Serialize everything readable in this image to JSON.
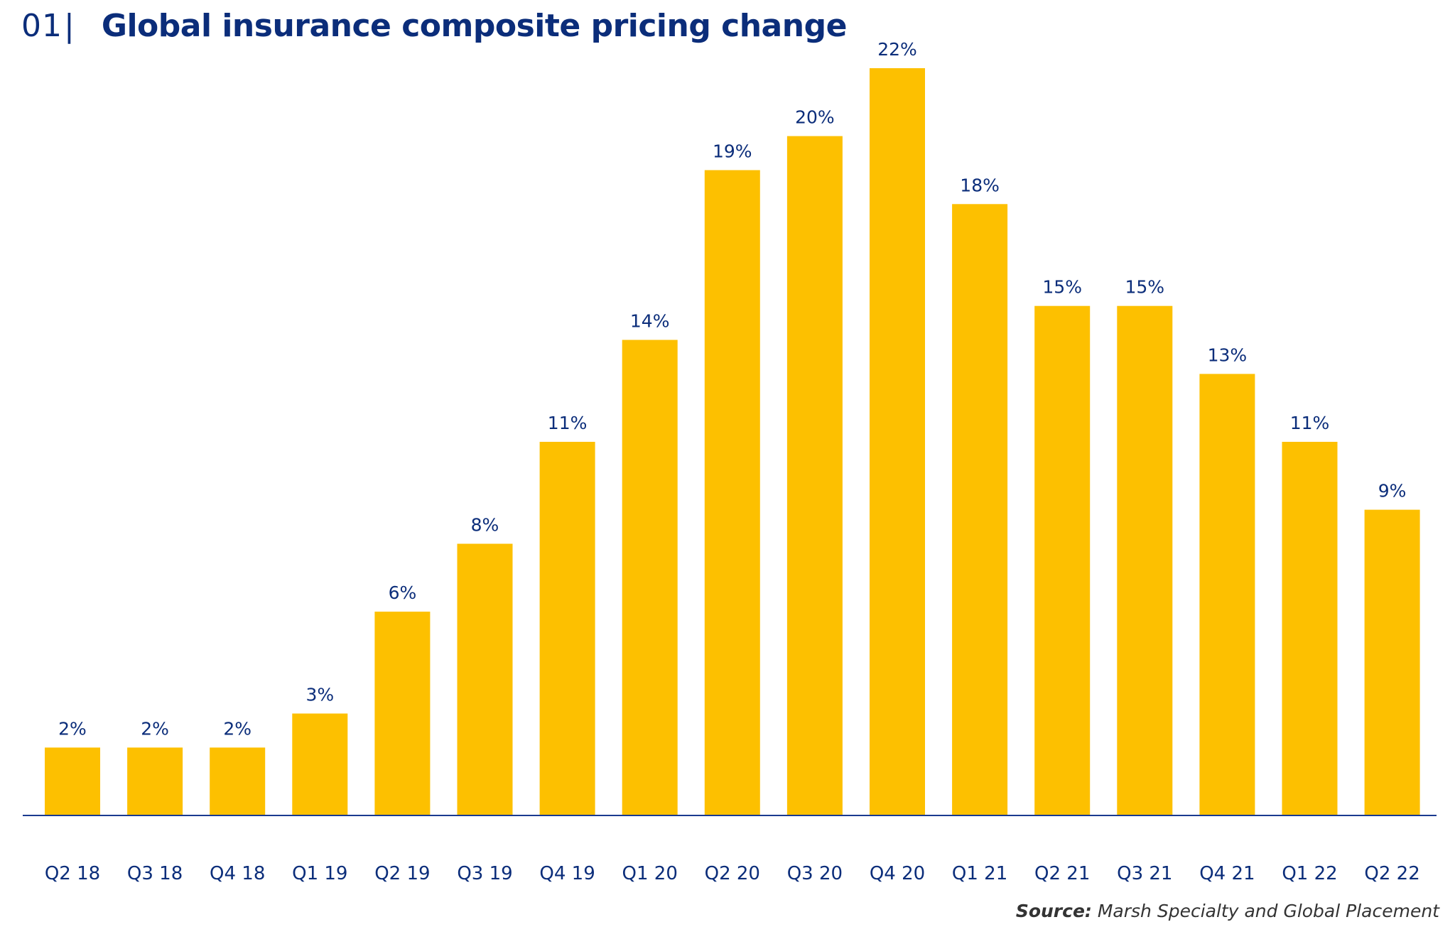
{
  "header": {
    "figure_number": "01",
    "separator": "|",
    "title": "Global insurance composite pricing change"
  },
  "source": {
    "label": "Source:",
    "text": "Marsh Specialty and Global Placement"
  },
  "colors": {
    "bar": "#fdc000",
    "axis": "#1a3a8f",
    "text": "#0b2d7a"
  },
  "chart_data": {
    "type": "bar",
    "title": "Global insurance composite pricing change",
    "xlabel": "",
    "ylabel": "",
    "categories": [
      "Q2 18",
      "Q3 18",
      "Q4 18",
      "Q1 19",
      "Q2 19",
      "Q3 19",
      "Q4 19",
      "Q1 20",
      "Q2 20",
      "Q3 20",
      "Q4 20",
      "Q1 21",
      "Q2 21",
      "Q3 21",
      "Q4 21",
      "Q1 22",
      "Q2 22"
    ],
    "values": [
      2,
      2,
      2,
      3,
      6,
      8,
      11,
      14,
      19,
      20,
      22,
      18,
      15,
      15,
      13,
      11,
      9
    ],
    "data_labels": [
      "2%",
      "2%",
      "2%",
      "3%",
      "6%",
      "8%",
      "11%",
      "14%",
      "19%",
      "20%",
      "22%",
      "18%",
      "15%",
      "15%",
      "13%",
      "11%",
      "9%"
    ],
    "unit": "%",
    "ylim": [
      0,
      22
    ],
    "grid": false,
    "legend": "none"
  }
}
